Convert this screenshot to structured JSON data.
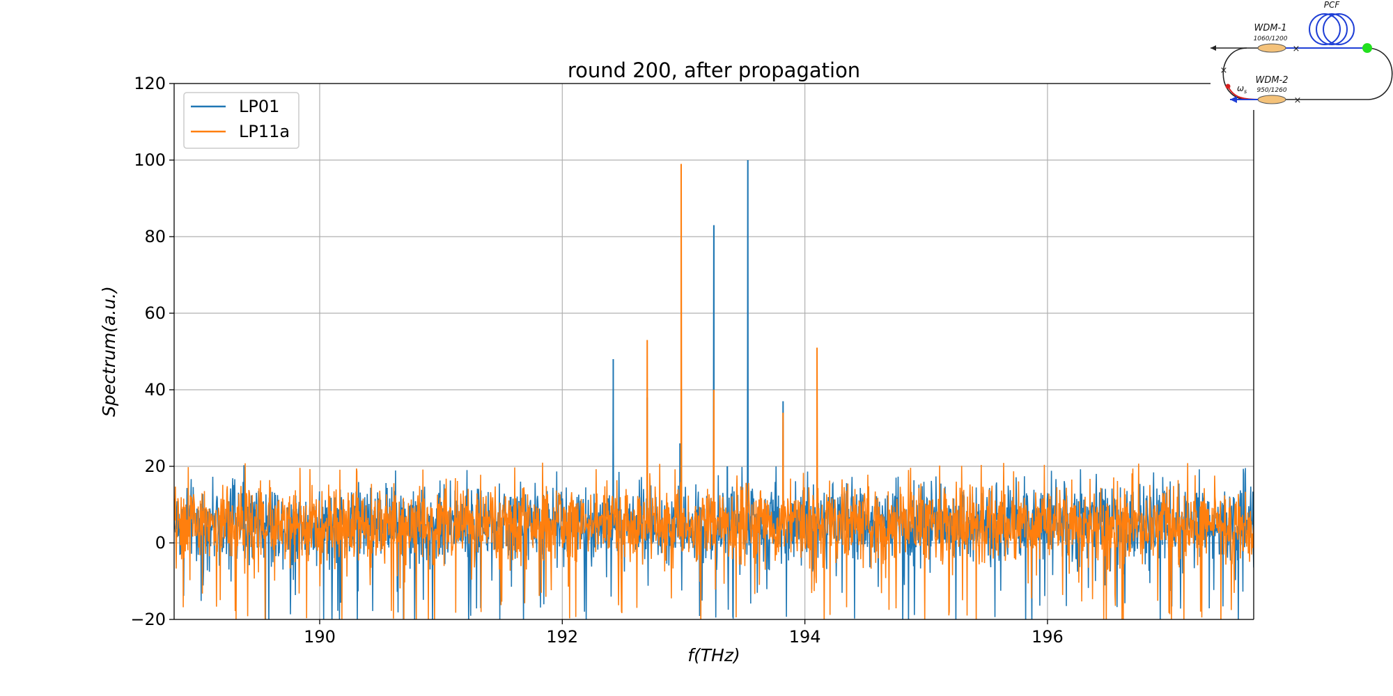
{
  "chart_data": {
    "type": "line",
    "title": "round 200, after propagation",
    "xlabel": "f(THz)",
    "ylabel": "Spectrum(a.u.)",
    "xlim": [
      188.8,
      197.7
    ],
    "ylim": [
      -20,
      120
    ],
    "xticks": [
      190,
      192,
      194,
      196
    ],
    "yticks": [
      -20,
      0,
      20,
      40,
      60,
      80,
      100,
      120
    ],
    "grid": true,
    "legend_position": "top-left",
    "noise_floor": {
      "mean": 5,
      "typical_range": [
        -5,
        15
      ],
      "extreme_range": [
        -20,
        21
      ]
    },
    "series": [
      {
        "name": "LP01",
        "color": "#1f77b4",
        "peaks": [
          {
            "x": 192.42,
            "y": 48
          },
          {
            "x": 192.7,
            "y": 38
          },
          {
            "x": 192.97,
            "y": 26
          },
          {
            "x": 193.25,
            "y": 83
          },
          {
            "x": 193.36,
            "y": 20
          },
          {
            "x": 193.53,
            "y": 100
          },
          {
            "x": 193.82,
            "y": 37
          }
        ]
      },
      {
        "name": "LP11a",
        "color": "#ff7f0e",
        "peaks": [
          {
            "x": 192.7,
            "y": 53
          },
          {
            "x": 192.98,
            "y": 99
          },
          {
            "x": 193.25,
            "y": 40
          },
          {
            "x": 193.82,
            "y": 34
          },
          {
            "x": 194.1,
            "y": 51
          }
        ]
      }
    ]
  },
  "inset": {
    "pcf_label": "PCF",
    "wdm1_label": "WDM-1",
    "wdm1_sub": "1060/1200",
    "wdm2_label": "WDM-2",
    "wdm2_sub": "950/1260",
    "omega_label": "ω",
    "omega_sub": "s"
  }
}
